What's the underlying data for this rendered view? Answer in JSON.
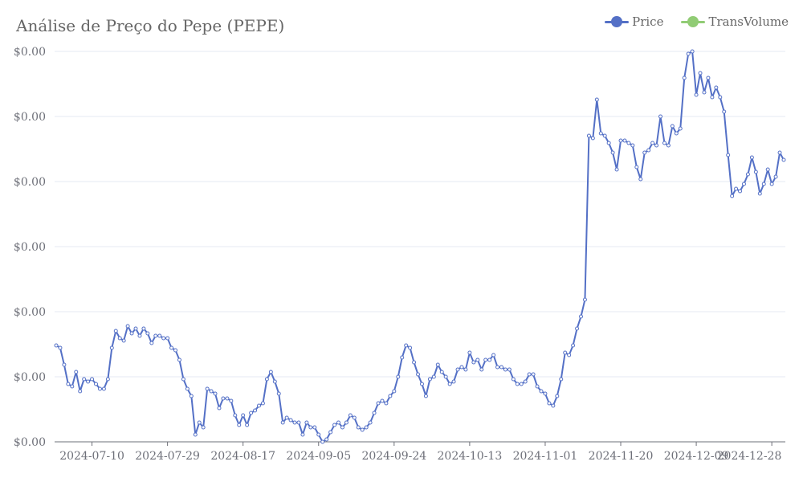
{
  "chart_data": {
    "type": "line",
    "title": "Análise de Preço do Pepe (PEPE)",
    "legend_position": "top-right",
    "grid": true,
    "y_tick_labels": [
      "$0.00",
      "$0.00",
      "$0.00",
      "$0.00",
      "$0.00",
      "$0.00",
      "$0.00"
    ],
    "ylim": [
      7e-06,
      2.32e-05
    ],
    "x_tick_labels": [
      "2024-07-10",
      "2024-07-29",
      "2024-08-17",
      "2024-09-05",
      "2024-09-24",
      "2024-10-13",
      "2024-11-01",
      "2024-11-20",
      "2024-12-09",
      "2024-12-28"
    ],
    "x_start": "2024-07-01",
    "series": [
      {
        "name": "Price",
        "color": "#5470c6",
        "values": [
          1.1e-05,
          1.09e-05,
          1.02e-05,
          9.4e-06,
          9.3e-06,
          9.9e-06,
          9.1e-06,
          9.6e-06,
          9.5e-06,
          9.6e-06,
          9.4e-06,
          9.2e-06,
          9.2e-06,
          9.6e-06,
          1.09e-05,
          1.16e-05,
          1.13e-05,
          1.12e-05,
          1.18e-05,
          1.15e-05,
          1.17e-05,
          1.14e-05,
          1.17e-05,
          1.15e-05,
          1.11e-05,
          1.14e-05,
          1.14e-05,
          1.13e-05,
          1.13e-05,
          1.09e-05,
          1.08e-05,
          1.04e-05,
          9.6e-06,
          9.2e-06,
          8.9e-06,
          7.3e-06,
          7.8e-06,
          7.6e-06,
          9.2e-06,
          9.1e-06,
          9e-06,
          8.4e-06,
          8.8e-06,
          8.8e-06,
          8.7e-06,
          8.1e-06,
          7.7e-06,
          8.1e-06,
          7.7e-06,
          8.2e-06,
          8.3e-06,
          8.5e-06,
          8.6e-06,
          9.6e-06,
          9.9e-06,
          9.5e-06,
          9e-06,
          7.8e-06,
          8e-06,
          7.9e-06,
          7.8e-06,
          7.8e-06,
          7.3e-06,
          7.8e-06,
          7.6e-06,
          7.6e-06,
          7.3e-06,
          7e-06,
          7.1e-06,
          7.4e-06,
          7.7e-06,
          7.8e-06,
          7.6e-06,
          7.8e-06,
          8.1e-06,
          8e-06,
          7.6e-06,
          7.5e-06,
          7.6e-06,
          7.8e-06,
          8.2e-06,
          8.6e-06,
          8.7e-06,
          8.6e-06,
          8.9e-06,
          9.1e-06,
          9.7e-06,
          1.05e-05,
          1.1e-05,
          1.09e-05,
          1.03e-05,
          9.8e-06,
          9.4e-06,
          8.9e-06,
          9.6e-06,
          9.7e-06,
          1.02e-05,
          9.9e-06,
          9.7e-06,
          9.4e-06,
          9.5e-06,
          1e-05,
          1.01e-05,
          1e-05,
          1.07e-05,
          1.03e-05,
          1.04e-05,
          1e-05,
          1.04e-05,
          1.04e-05,
          1.06e-05,
          1.01e-05,
          1.01e-05,
          1e-05,
          1e-05,
          9.6e-06,
          9.4e-06,
          9.4e-06,
          9.5e-06,
          9.8e-06,
          9.8e-06,
          9.3e-06,
          9.1e-06,
          9e-06,
          8.6e-06,
          8.5e-06,
          8.9e-06,
          9.6e-06,
          1.07e-05,
          1.06e-05,
          1.1e-05,
          1.17e-05,
          1.22e-05,
          1.29e-05,
          1.97e-05,
          1.96e-05,
          2.12e-05,
          1.98e-05,
          1.97e-05,
          1.94e-05,
          1.9e-05,
          1.83e-05,
          1.95e-05,
          1.95e-05,
          1.94e-05,
          1.93e-05,
          1.84e-05,
          1.79e-05,
          1.9e-05,
          1.91e-05,
          1.94e-05,
          1.93e-05,
          2.05e-05,
          1.94e-05,
          1.93e-05,
          2.01e-05,
          1.98e-05,
          2e-05,
          2.21e-05,
          2.31e-05,
          2.32e-05,
          2.14e-05,
          2.23e-05,
          2.15e-05,
          2.21e-05,
          2.13e-05,
          2.17e-05,
          2.13e-05,
          2.07e-05,
          1.89e-05,
          1.72e-05,
          1.75e-05,
          1.74e-05,
          1.77e-05,
          1.81e-05,
          1.88e-05,
          1.82e-05,
          1.73e-05,
          1.77e-05,
          1.83e-05,
          1.77e-05,
          1.8e-05,
          1.9e-05,
          1.87e-05
        ]
      },
      {
        "name": "TransVolume",
        "color": "#91cc75",
        "values": []
      }
    ]
  }
}
